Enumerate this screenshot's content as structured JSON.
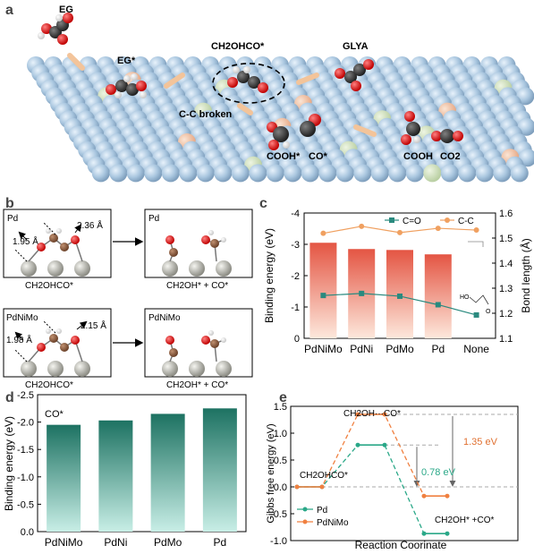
{
  "panel_a": {
    "letter": "a",
    "labels": {
      "eg": "EG",
      "eg_star": "EG*",
      "ch2ohco": "CH2OHCO*",
      "glya": "GLYA",
      "cc_broken": "C-C broken",
      "cooh_star": "COOH*",
      "co_star": "CO*",
      "cooh": "COOH",
      "co2": "CO2"
    }
  },
  "panel_b": {
    "letter": "b",
    "top_left": {
      "title": "Pd",
      "d1": "1.95 Å",
      "d2": "2.36 Å",
      "caption": "CH2OHCO*"
    },
    "top_right": {
      "title": "Pd",
      "caption": "CH2OH* + CO*"
    },
    "bottom_left": {
      "title": "PdNiMo",
      "d1": "1.98 Å",
      "d2": "2.15 Å",
      "caption": "CH2OHCO*"
    },
    "bottom_right": {
      "title": "PdNiMo",
      "caption": "CH2OH* + CO*"
    }
  },
  "panel_c": {
    "letter": "c",
    "chart_data": {
      "type": "bar",
      "categories": [
        "PdNiMo",
        "PdNi",
        "PdMo",
        "Pd",
        "None"
      ],
      "series": [
        {
          "name": "Binding energy",
          "values": [
            -3.05,
            -2.85,
            -2.82,
            -2.68,
            null
          ],
          "color": "#e45c4a"
        },
        {
          "name": "C=O",
          "axis": "right",
          "type": "line",
          "values": [
            1.271,
            1.279,
            1.268,
            1.234,
            1.193
          ],
          "color": "#2a8a7f"
        },
        {
          "name": "C-C",
          "axis": "right",
          "type": "line",
          "values": [
            1.519,
            1.547,
            1.522,
            1.539,
            1.532
          ],
          "color": "#f0a060"
        }
      ],
      "ylabel": "Binding energy (eV)",
      "ylabel_right": "Bond length (Å)",
      "ylim": [
        0,
        -4
      ],
      "ylim_right": [
        1.1,
        1.6
      ],
      "yticks": [
        "0",
        "-1",
        "-2",
        "-3",
        "-4"
      ],
      "yticks_right": [
        "1.1",
        "1.2",
        "1.3",
        "1.4",
        "1.5",
        "1.6"
      ],
      "legend": [
        "C=O",
        "C-C"
      ],
      "legend_position": "top-right",
      "inset_label": "HO"
    }
  },
  "panel_d": {
    "letter": "d",
    "chart_data": {
      "type": "bar",
      "categories": [
        "PdNiMo",
        "PdNi",
        "PdMo",
        "Pd"
      ],
      "values": [
        -1.95,
        -2.03,
        -2.15,
        -2.25
      ],
      "annotation": "CO*",
      "ylabel": "Binding energy (eV)",
      "ylim": [
        0,
        -2.5
      ],
      "yticks": [
        "0.0",
        "-0.5",
        "-1.0",
        "-1.5",
        "-2.0",
        "-2.5"
      ],
      "color_top": "#1d7262",
      "color_bottom": "#c8eee6"
    }
  },
  "panel_e": {
    "letter": "e",
    "chart_data": {
      "type": "line",
      "x_labels": [
        "CH2OHCO*",
        "CH2OH···CO*",
        "CH2OH* +CO*"
      ],
      "series": [
        {
          "name": "Pd",
          "values": [
            0.0,
            0.78,
            -0.87
          ],
          "color": "#2aa888"
        },
        {
          "name": "PdNiMo",
          "values": [
            0.0,
            1.35,
            -0.17
          ],
          "color": "#f08040"
        }
      ],
      "ylabel": "Gibbs free energy (eV)",
      "xlabel": "Reaction Coorinate",
      "ylim": [
        -1.0,
        1.5
      ],
      "yticks": [
        "-1.0",
        "-0.5",
        "0.0",
        "0.5",
        "1.0",
        "1.5"
      ],
      "annotations": {
        "pd_barrier": "0.78 eV",
        "pdnimo_barrier": "1.35 eV"
      },
      "legend_position": "bottom-left"
    }
  }
}
